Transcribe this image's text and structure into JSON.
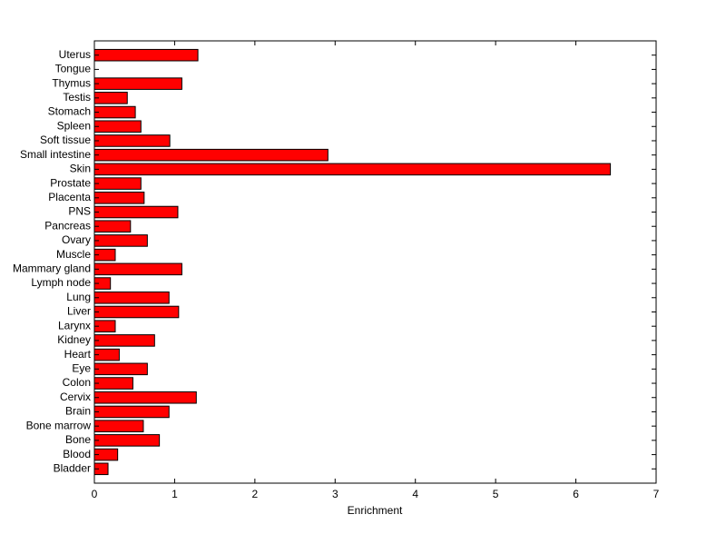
{
  "chart_data": {
    "type": "barh",
    "x_label": "Enrichment",
    "categories": [
      "Bladder",
      "Blood",
      "Bone",
      "Bone marrow",
      "Brain",
      "Cervix",
      "Colon",
      "Eye",
      "Heart",
      "Kidney",
      "Larynx",
      "Liver",
      "Lung",
      "Lymph node",
      "Mammary gland",
      "Muscle",
      "Ovary",
      "Pancreas",
      "PNS",
      "Placenta",
      "Prostate",
      "Skin",
      "Small intestine",
      "Soft tissue",
      "Spleen",
      "Stomach",
      "Testis",
      "Thymus",
      "Tongue",
      "Uterus"
    ],
    "values": [
      0.17,
      0.29,
      0.81,
      0.61,
      0.93,
      1.27,
      0.48,
      0.66,
      0.31,
      0.75,
      0.26,
      1.05,
      0.93,
      0.2,
      1.09,
      0.26,
      0.66,
      0.45,
      1.04,
      0.62,
      0.58,
      6.43,
      2.91,
      0.94,
      0.58,
      0.51,
      0.41,
      1.09,
      0,
      1.29
    ],
    "color": "#ff0000",
    "xlim": [
      0,
      7
    ],
    "xticks": [
      0,
      1,
      2,
      3,
      4,
      5,
      6,
      7
    ]
  }
}
